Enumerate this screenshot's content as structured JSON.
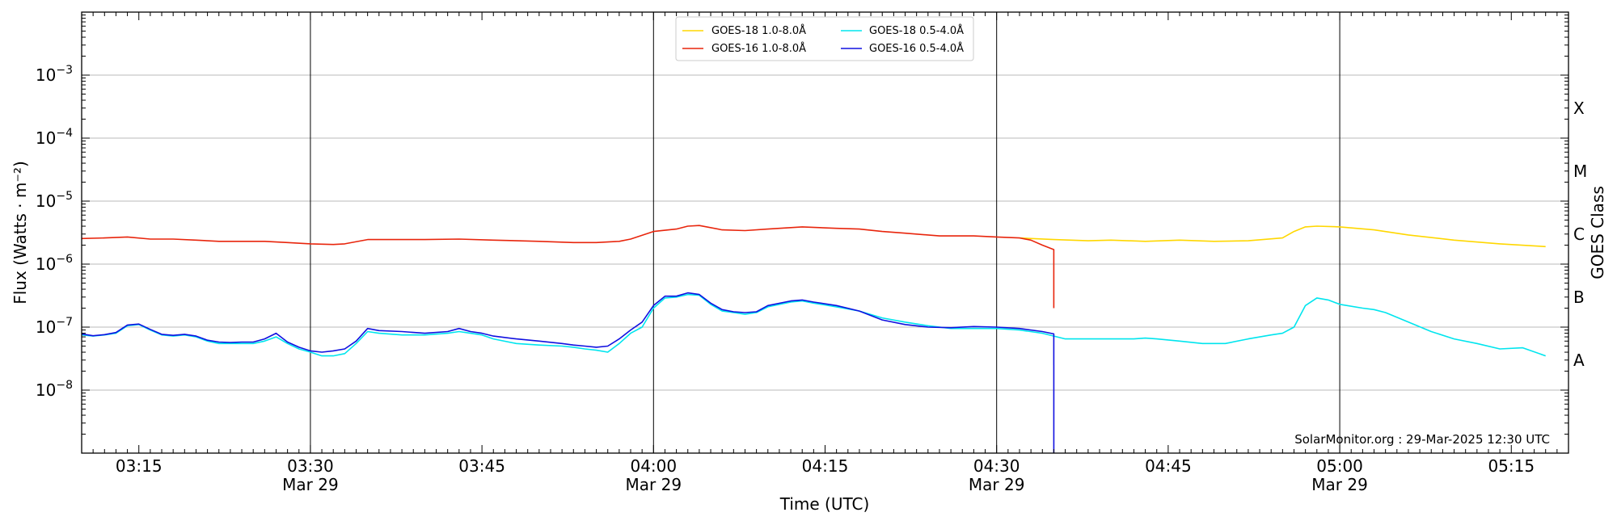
{
  "chart_data": {
    "type": "line",
    "title": "",
    "xlabel": "Time (UTC)",
    "ylabel": "Flux (Watts · m⁻²)",
    "ylabel_right": "GOES Class",
    "yscale": "log",
    "xlim": [
      "03:10",
      "05:20"
    ],
    "ylim": [
      1e-09,
      0.01
    ],
    "grid": {
      "horizontal": true,
      "vertical_at": [
        "03:30",
        "04:00",
        "04:30",
        "05:00"
      ]
    },
    "x_ticks": [
      {
        "time": "03:15",
        "label": "03:15",
        "sublabel": ""
      },
      {
        "time": "03:30",
        "label": "03:30",
        "sublabel": "Mar 29"
      },
      {
        "time": "03:45",
        "label": "03:45",
        "sublabel": ""
      },
      {
        "time": "04:00",
        "label": "04:00",
        "sublabel": "Mar 29"
      },
      {
        "time": "04:15",
        "label": "04:15",
        "sublabel": ""
      },
      {
        "time": "04:30",
        "label": "04:30",
        "sublabel": "Mar 29"
      },
      {
        "time": "04:45",
        "label": "04:45",
        "sublabel": ""
      },
      {
        "time": "05:00",
        "label": "05:00",
        "sublabel": "Mar 29"
      },
      {
        "time": "05:15",
        "label": "05:15",
        "sublabel": ""
      }
    ],
    "y_ticks": [
      {
        "value": 1e-08,
        "base": "10",
        "exp": "−8"
      },
      {
        "value": 1e-07,
        "base": "10",
        "exp": "−7"
      },
      {
        "value": 1e-06,
        "base": "10",
        "exp": "−6"
      },
      {
        "value": 1e-05,
        "base": "10",
        "exp": "−5"
      },
      {
        "value": 0.0001,
        "base": "10",
        "exp": "−4"
      },
      {
        "value": 0.001,
        "base": "10",
        "exp": "−3"
      }
    ],
    "goes_classes": [
      {
        "label": "X",
        "value": 0.0003
      },
      {
        "label": "M",
        "value": 3e-05
      },
      {
        "label": "C",
        "value": 3e-06
      },
      {
        "label": "B",
        "value": 3e-07
      },
      {
        "label": "A",
        "value": 3e-08
      }
    ],
    "legend_position": "top-center",
    "credit": "SolarMonitor.org : 29-Mar-2025 12:30 UTC",
    "series": [
      {
        "name": "GOES-18 1.0-8.0Å",
        "color": "#ffd700",
        "x": [
          "04:32",
          "04:35",
          "04:38",
          "04:40",
          "04:43",
          "04:46",
          "04:49",
          "04:52",
          "04:55",
          "04:56",
          "04:57",
          "04:58",
          "05:00",
          "05:03",
          "05:06",
          "05:10",
          "05:14",
          "05:18"
        ],
        "y": [
          2.6e-06,
          2.45e-06,
          2.35e-06,
          2.4e-06,
          2.3e-06,
          2.4e-06,
          2.3e-06,
          2.35e-06,
          2.6e-06,
          3.3e-06,
          3.9e-06,
          4e-06,
          3.9e-06,
          3.5e-06,
          2.9e-06,
          2.4e-06,
          2.1e-06,
          1.9e-06
        ]
      },
      {
        "name": "GOES-16 1.0-8.0Å",
        "color": "#e8250c",
        "x": [
          "03:10",
          "03:12",
          "03:14",
          "03:16",
          "03:18",
          "03:20",
          "03:22",
          "03:24",
          "03:26",
          "03:28",
          "03:30",
          "03:32",
          "03:33",
          "03:35",
          "03:37",
          "03:40",
          "03:43",
          "03:46",
          "03:50",
          "03:53",
          "03:55",
          "03:57",
          "03:58",
          "04:00",
          "04:02",
          "04:03",
          "04:04",
          "04:06",
          "04:08",
          "04:10",
          "04:13",
          "04:16",
          "04:18",
          "04:20",
          "04:22",
          "04:25",
          "04:28",
          "04:30",
          "04:32",
          "04:33",
          "04:34",
          "04:35",
          "04:35"
        ],
        "y": [
          2.55e-06,
          2.6e-06,
          2.7e-06,
          2.5e-06,
          2.5e-06,
          2.4e-06,
          2.3e-06,
          2.3e-06,
          2.3e-06,
          2.2e-06,
          2.1e-06,
          2.05e-06,
          2.1e-06,
          2.45e-06,
          2.45e-06,
          2.45e-06,
          2.5e-06,
          2.4e-06,
          2.3e-06,
          2.2e-06,
          2.2e-06,
          2.3e-06,
          2.5e-06,
          3.3e-06,
          3.6e-06,
          4e-06,
          4.1e-06,
          3.5e-06,
          3.4e-06,
          3.6e-06,
          3.9e-06,
          3.7e-06,
          3.6e-06,
          3.3e-06,
          3.1e-06,
          2.8e-06,
          2.8e-06,
          2.7e-06,
          2.6e-06,
          2.4e-06,
          2e-06,
          1.7e-06,
          2e-07
        ]
      },
      {
        "name": "GOES-18 0.5-4.0Å",
        "color": "#00e5ee",
        "x": [
          "03:10",
          "03:11",
          "03:12",
          "03:13",
          "03:14",
          "03:15",
          "03:16",
          "03:17",
          "03:18",
          "03:19",
          "03:20",
          "03:21",
          "03:22",
          "03:23",
          "03:24",
          "03:25",
          "03:26",
          "03:27",
          "03:28",
          "03:29",
          "03:30",
          "03:31",
          "03:32",
          "03:33",
          "03:34",
          "03:35",
          "03:36",
          "03:38",
          "03:40",
          "03:42",
          "03:43",
          "03:44",
          "03:45",
          "03:46",
          "03:48",
          "03:50",
          "03:52",
          "03:53",
          "03:54",
          "03:55",
          "03:56",
          "03:57",
          "03:58",
          "03:59",
          "04:00",
          "04:01",
          "04:02",
          "04:03",
          "04:04",
          "04:05",
          "04:06",
          "04:07",
          "04:08",
          "04:09",
          "04:10",
          "04:12",
          "04:13",
          "04:14",
          "04:16",
          "04:18",
          "04:20",
          "04:22",
          "04:24",
          "04:26",
          "04:28",
          "04:30",
          "04:32",
          "04:34",
          "04:36",
          "04:38",
          "04:40",
          "04:42",
          "04:43",
          "04:44",
          "04:46",
          "04:48",
          "04:50",
          "04:52",
          "04:54",
          "04:55",
          "04:56",
          "04:57",
          "04:58",
          "04:59",
          "05:00",
          "05:02",
          "05:03",
          "05:04",
          "05:06",
          "05:08",
          "05:10",
          "05:12",
          "05:14",
          "05:16",
          "05:18"
        ],
        "y": [
          7.5e-08,
          7.2e-08,
          7.5e-08,
          8e-08,
          1.05e-07,
          1.1e-07,
          9e-08,
          7.5e-08,
          7.2e-08,
          7.5e-08,
          7e-08,
          6e-08,
          5.5e-08,
          5.5e-08,
          5.5e-08,
          5.5e-08,
          6e-08,
          7e-08,
          5.5e-08,
          4.5e-08,
          4e-08,
          3.5e-08,
          3.5e-08,
          3.8e-08,
          5.5e-08,
          8.5e-08,
          8e-08,
          7.5e-08,
          7.5e-08,
          8e-08,
          8.5e-08,
          8e-08,
          7.5e-08,
          6.5e-08,
          5.5e-08,
          5.2e-08,
          5e-08,
          4.8e-08,
          4.5e-08,
          4.3e-08,
          4e-08,
          5.5e-08,
          8e-08,
          1e-07,
          2e-07,
          2.9e-07,
          3e-07,
          3.3e-07,
          3.2e-07,
          2.3e-07,
          1.8e-07,
          1.7e-07,
          1.6e-07,
          1.7e-07,
          2.1e-07,
          2.5e-07,
          2.6e-07,
          2.4e-07,
          2.1e-07,
          1.8e-07,
          1.4e-07,
          1.2e-07,
          1.05e-07,
          9.5e-08,
          9.5e-08,
          9.5e-08,
          9e-08,
          8e-08,
          6.5e-08,
          6.5e-08,
          6.5e-08,
          6.5e-08,
          6.7e-08,
          6.5e-08,
          6e-08,
          5.5e-08,
          5.5e-08,
          6.5e-08,
          7.5e-08,
          8e-08,
          1e-07,
          2.2e-07,
          2.9e-07,
          2.7e-07,
          2.3e-07,
          2e-07,
          1.9e-07,
          1.7e-07,
          1.2e-07,
          8.5e-08,
          6.5e-08,
          5.5e-08,
          4.5e-08,
          4.7e-08,
          3.5e-08
        ]
      },
      {
        "name": "GOES-16 0.5-4.0Å",
        "color": "#1010e0",
        "x": [
          "03:10",
          "03:11",
          "03:12",
          "03:13",
          "03:14",
          "03:15",
          "03:16",
          "03:17",
          "03:18",
          "03:19",
          "03:20",
          "03:21",
          "03:22",
          "03:23",
          "03:24",
          "03:25",
          "03:26",
          "03:27",
          "03:28",
          "03:29",
          "03:30",
          "03:31",
          "03:32",
          "03:33",
          "03:34",
          "03:35",
          "03:36",
          "03:38",
          "03:40",
          "03:42",
          "03:43",
          "03:44",
          "03:45",
          "03:46",
          "03:48",
          "03:50",
          "03:52",
          "03:53",
          "03:54",
          "03:55",
          "03:56",
          "03:57",
          "03:58",
          "03:59",
          "04:00",
          "04:01",
          "04:02",
          "04:03",
          "04:04",
          "04:05",
          "04:06",
          "04:07",
          "04:08",
          "04:09",
          "04:10",
          "04:12",
          "04:13",
          "04:14",
          "04:16",
          "04:18",
          "04:20",
          "04:22",
          "04:24",
          "04:26",
          "04:28",
          "04:30",
          "04:32",
          "04:34",
          "04:35",
          "04:35"
        ],
        "y": [
          7.8e-08,
          7.3e-08,
          7.6e-08,
          8.2e-08,
          1.08e-07,
          1.12e-07,
          9.2e-08,
          7.7e-08,
          7.4e-08,
          7.7e-08,
          7.2e-08,
          6.2e-08,
          5.8e-08,
          5.7e-08,
          5.8e-08,
          5.8e-08,
          6.5e-08,
          8e-08,
          5.8e-08,
          4.8e-08,
          4.2e-08,
          4e-08,
          4.2e-08,
          4.5e-08,
          6e-08,
          9.5e-08,
          8.8e-08,
          8.5e-08,
          8e-08,
          8.5e-08,
          9.5e-08,
          8.5e-08,
          8e-08,
          7.2e-08,
          6.5e-08,
          6e-08,
          5.5e-08,
          5.2e-08,
          5e-08,
          4.8e-08,
          5e-08,
          6.5e-08,
          9e-08,
          1.2e-07,
          2.2e-07,
          3.1e-07,
          3.1e-07,
          3.5e-07,
          3.3e-07,
          2.4e-07,
          1.9e-07,
          1.75e-07,
          1.7e-07,
          1.75e-07,
          2.2e-07,
          2.6e-07,
          2.7e-07,
          2.5e-07,
          2.2e-07,
          1.8e-07,
          1.3e-07,
          1.1e-07,
          1e-07,
          9.8e-08,
          1.02e-07,
          1e-07,
          9.5e-08,
          8.5e-08,
          7.8e-08,
          2.5e-08
        ]
      }
    ],
    "drop_line": {
      "time": "04:35",
      "color": "#1010e0",
      "from": 2.5e-08,
      "to": 1e-09
    }
  }
}
